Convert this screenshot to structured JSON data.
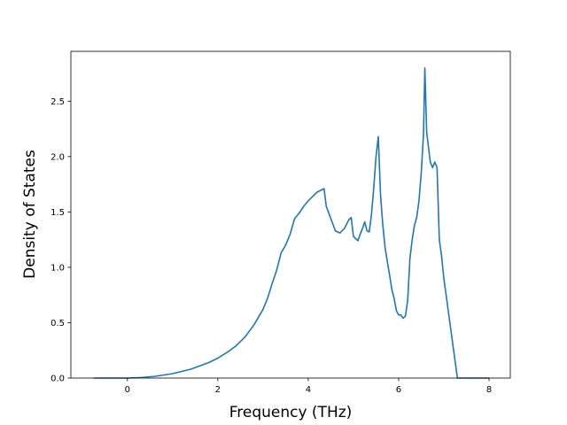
{
  "chart_data": {
    "type": "line",
    "title": "",
    "xlabel": "Frequency (THz)",
    "ylabel": "Density of States",
    "xlim": [
      -1.25,
      8.47
    ],
    "ylim": [
      0,
      2.95
    ],
    "xticks": [
      0,
      2,
      4,
      6,
      8
    ],
    "yticks": [
      0.0,
      0.5,
      1.0,
      1.5,
      2.0,
      2.5
    ],
    "xtick_labels": [
      "0",
      "2",
      "4",
      "6",
      "8"
    ],
    "ytick_labels": [
      "0.0",
      "0.5",
      "1.0",
      "1.5",
      "2.0",
      "2.5"
    ],
    "grid": false,
    "legend": "none",
    "series": [
      {
        "color": "#1f77b4",
        "points": [
          [
            -0.75,
            0.0
          ],
          [
            0.0,
            0.0
          ],
          [
            0.3,
            0.005
          ],
          [
            0.6,
            0.015
          ],
          [
            1.0,
            0.04
          ],
          [
            1.4,
            0.08
          ],
          [
            1.8,
            0.14
          ],
          [
            2.0,
            0.18
          ],
          [
            2.2,
            0.23
          ],
          [
            2.4,
            0.29
          ],
          [
            2.6,
            0.37
          ],
          [
            2.8,
            0.48
          ],
          [
            3.0,
            0.62
          ],
          [
            3.1,
            0.72
          ],
          [
            3.2,
            0.85
          ],
          [
            3.3,
            0.97
          ],
          [
            3.35,
            1.05
          ],
          [
            3.4,
            1.13
          ],
          [
            3.5,
            1.2
          ],
          [
            3.6,
            1.3
          ],
          [
            3.7,
            1.44
          ],
          [
            3.8,
            1.49
          ],
          [
            3.9,
            1.55
          ],
          [
            4.0,
            1.6
          ],
          [
            4.1,
            1.64
          ],
          [
            4.2,
            1.68
          ],
          [
            4.3,
            1.7
          ],
          [
            4.35,
            1.71
          ],
          [
            4.4,
            1.55
          ],
          [
            4.5,
            1.44
          ],
          [
            4.6,
            1.33
          ],
          [
            4.7,
            1.31
          ],
          [
            4.8,
            1.35
          ],
          [
            4.9,
            1.43
          ],
          [
            4.95,
            1.45
          ],
          [
            5.0,
            1.28
          ],
          [
            5.1,
            1.24
          ],
          [
            5.15,
            1.3
          ],
          [
            5.2,
            1.35
          ],
          [
            5.25,
            1.41
          ],
          [
            5.3,
            1.33
          ],
          [
            5.35,
            1.32
          ],
          [
            5.4,
            1.48
          ],
          [
            5.45,
            1.72
          ],
          [
            5.5,
            2.0
          ],
          [
            5.55,
            2.18
          ],
          [
            5.6,
            1.65
          ],
          [
            5.65,
            1.38
          ],
          [
            5.7,
            1.18
          ],
          [
            5.75,
            1.05
          ],
          [
            5.8,
            0.93
          ],
          [
            5.85,
            0.8
          ],
          [
            5.9,
            0.72
          ],
          [
            5.95,
            0.61
          ],
          [
            6.0,
            0.57
          ],
          [
            6.05,
            0.57
          ],
          [
            6.1,
            0.54
          ],
          [
            6.15,
            0.56
          ],
          [
            6.2,
            0.7
          ],
          [
            6.25,
            1.08
          ],
          [
            6.3,
            1.25
          ],
          [
            6.35,
            1.38
          ],
          [
            6.4,
            1.45
          ],
          [
            6.45,
            1.6
          ],
          [
            6.5,
            1.85
          ],
          [
            6.55,
            2.2
          ],
          [
            6.58,
            2.8
          ],
          [
            6.62,
            2.22
          ],
          [
            6.7,
            1.95
          ],
          [
            6.75,
            1.9
          ],
          [
            6.8,
            1.95
          ],
          [
            6.85,
            1.9
          ],
          [
            6.9,
            1.25
          ],
          [
            6.95,
            1.1
          ],
          [
            7.0,
            0.9
          ],
          [
            7.05,
            0.75
          ],
          [
            7.1,
            0.6
          ],
          [
            7.2,
            0.3
          ],
          [
            7.3,
            0.0
          ],
          [
            8.0,
            0.0
          ]
        ]
      }
    ]
  }
}
